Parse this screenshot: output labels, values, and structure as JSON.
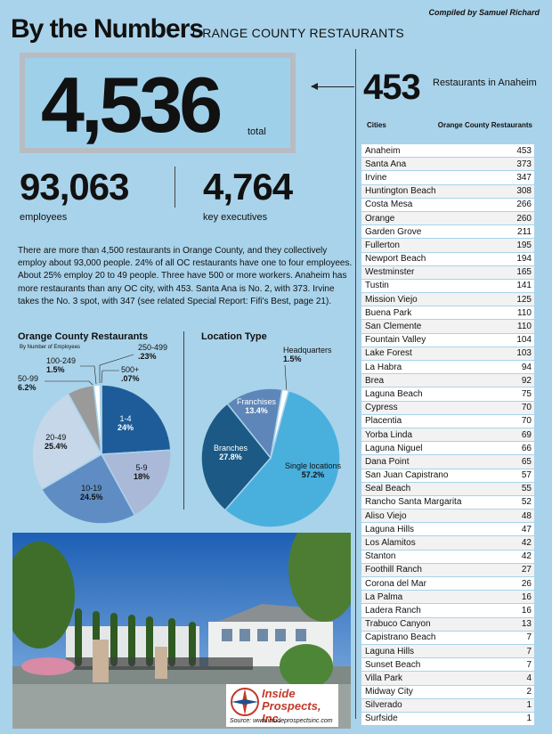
{
  "header": {
    "title": "By the Numbers",
    "subtitle": "ORANGE COUNTY RESTAURANTS",
    "credit": "Compiled by Samuel Richard"
  },
  "stats": {
    "total_value": "4,536",
    "total_label": "total",
    "employees_value": "93,063",
    "employees_label": "employees",
    "executives_value": "4,764",
    "executives_label": "key executives",
    "anaheim_value": "453",
    "anaheim_label": "Restaurants in Anaheim"
  },
  "body_text": "There are more than 4,500 restaurants in Orange County, and they collectively employ about 93,000 people. 24% of all OC restaurants have one to four employees. About 25% employ 20 to 49 people. Three have 500 or more workers. Anaheim has more restaurants than any OC city, with 453. Santa Ana is No. 2, with 373. Irvine takes the No. 3 spot, with 347 (see related Special Report: Fifi's Best, page 21).",
  "table": {
    "col_city": "Cities",
    "col_count": "Orange County Restaurants",
    "rows": [
      {
        "city": "Anaheim",
        "count": "453"
      },
      {
        "city": "Santa Ana",
        "count": "373"
      },
      {
        "city": "Irvine",
        "count": "347"
      },
      {
        "city": "Huntington Beach",
        "count": "308"
      },
      {
        "city": "Costa Mesa",
        "count": "266"
      },
      {
        "city": "Orange",
        "count": "260"
      },
      {
        "city": "Garden Grove",
        "count": "211"
      },
      {
        "city": "Fullerton",
        "count": "195"
      },
      {
        "city": "Newport Beach",
        "count": "194"
      },
      {
        "city": "Westminster",
        "count": "165"
      },
      {
        "city": "Tustin",
        "count": "141"
      },
      {
        "city": "Mission Viejo",
        "count": "125"
      },
      {
        "city": "Buena Park",
        "count": "110"
      },
      {
        "city": "San Clemente",
        "count": "110"
      },
      {
        "city": "Fountain Valley",
        "count": "104"
      },
      {
        "city": "Lake Forest",
        "count": "103"
      },
      {
        "city": "La Habra",
        "count": "94"
      },
      {
        "city": "Brea",
        "count": "92"
      },
      {
        "city": "Laguna Beach",
        "count": "75"
      },
      {
        "city": "Cypress",
        "count": "70"
      },
      {
        "city": "Placentia",
        "count": "70"
      },
      {
        "city": "Yorba Linda",
        "count": "69"
      },
      {
        "city": "Laguna Niguel",
        "count": "66"
      },
      {
        "city": "Dana Point",
        "count": "65"
      },
      {
        "city": "San Juan Capistrano",
        "count": "57"
      },
      {
        "city": "Seal Beach",
        "count": "55"
      },
      {
        "city": "Rancho Santa Margarita",
        "count": "52"
      },
      {
        "city": "Aliso Viejo",
        "count": "48"
      },
      {
        "city": "Laguna Hills",
        "count": "47"
      },
      {
        "city": "Los Alamitos",
        "count": "42"
      },
      {
        "city": "Stanton",
        "count": "42"
      },
      {
        "city": "Foothill Ranch",
        "count": "27"
      },
      {
        "city": "Corona del Mar",
        "count": "26"
      },
      {
        "city": "La Palma",
        "count": "16"
      },
      {
        "city": "Ladera Ranch",
        "count": "16"
      },
      {
        "city": "Trabuco Canyon",
        "count": "13"
      },
      {
        "city": "Capistrano Beach",
        "count": "7"
      },
      {
        "city": "Laguna Hills",
        "count": "7"
      },
      {
        "city": "Sunset Beach",
        "count": "7"
      },
      {
        "city": "Villa Park",
        "count": "4"
      },
      {
        "city": "Midway City",
        "count": "2"
      },
      {
        "city": "Silverado",
        "count": "1"
      },
      {
        "city": "Surfside",
        "count": "1"
      }
    ]
  },
  "chart_data": [
    {
      "type": "pie",
      "title": "Orange County Restaurants",
      "subtitle": "By Number of Employees",
      "slices": [
        {
          "label": "1-4",
          "value": 24,
          "display": "24%",
          "color": "#1e5c99"
        },
        {
          "label": "5-9",
          "value": 18,
          "display": "18%",
          "color": "#aab9d8"
        },
        {
          "label": "10-19",
          "value": 24.5,
          "display": "24.5%",
          "color": "#5f8dc3"
        },
        {
          "label": "20-49",
          "value": 25.4,
          "display": "25.4%",
          "color": "#c5d7e9"
        },
        {
          "label": "50-99",
          "value": 6.2,
          "display": "6.2%",
          "color": "#9a9a9a"
        },
        {
          "label": "100-249",
          "value": 1.5,
          "display": "1.5%",
          "color": "#ffffff"
        },
        {
          "label": "250-499",
          "value": 0.23,
          "display": ".23%",
          "color": "#1e5c99"
        },
        {
          "label": "500+",
          "value": 0.07,
          "display": ".07%",
          "color": "#5f8dc3"
        }
      ]
    },
    {
      "type": "pie",
      "title": "Location Type",
      "slices": [
        {
          "label": "Single locations",
          "value": 57.2,
          "display": "57.2%",
          "color": "#49b0de"
        },
        {
          "label": "Branches",
          "value": 27.8,
          "display": "27.8%",
          "color": "#1c5a85"
        },
        {
          "label": "Franchises",
          "value": 13.4,
          "display": "13.4%",
          "color": "#5e86b9"
        },
        {
          "label": "Headquarters",
          "value": 1.5,
          "display": "1.5%",
          "color": "#ffffff"
        }
      ]
    }
  ],
  "photo": {
    "logo_line1": "Inside",
    "logo_line2": "Prospects, Inc.",
    "source": "Source: www.insideprospectsinc.com"
  }
}
